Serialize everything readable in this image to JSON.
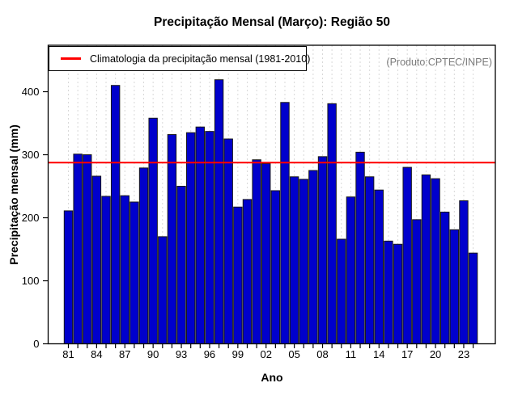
{
  "chart_data": {
    "type": "bar",
    "title": "Precipitação Mensal (Março): Região 50",
    "xlabel": "Ano",
    "ylabel": "Precipitação mensal (mm)",
    "watermark": "(Produto:CPTEC/INPE)",
    "legend_label": "Climatologia da precipitação mensal (1981-2010)",
    "legend_position": "top-left",
    "years": [
      1981,
      1982,
      1983,
      1984,
      1985,
      1986,
      1987,
      1988,
      1989,
      1990,
      1991,
      1992,
      1993,
      1994,
      1995,
      1996,
      1997,
      1998,
      1999,
      2000,
      2001,
      2002,
      2003,
      2004,
      2005,
      2006,
      2007,
      2008,
      2009,
      2010,
      2011,
      2012,
      2013,
      2014,
      2015,
      2016,
      2017,
      2018,
      2019,
      2020,
      2021,
      2022,
      2023,
      2024
    ],
    "values": [
      211,
      301,
      300,
      266,
      234,
      410,
      235,
      225,
      279,
      358,
      170,
      332,
      250,
      335,
      344,
      337,
      419,
      325,
      217,
      229,
      292,
      286,
      243,
      383,
      265,
      261,
      275,
      297,
      381,
      166,
      233,
      304,
      265,
      244,
      163,
      158,
      280,
      197,
      268,
      262,
      209,
      181,
      227,
      144
    ],
    "climatology_mm": 287.5,
    "ylim": [
      0,
      474
    ],
    "yticks": [
      0,
      100,
      200,
      300,
      400
    ],
    "xtick_labels": [
      "81",
      "84",
      "87",
      "90",
      "93",
      "96",
      "99",
      "02",
      "05",
      "08",
      "11",
      "14",
      "17",
      "20",
      "23"
    ],
    "xtick_step_years": 3,
    "grid": "vertical-dashed",
    "bar_color": "#0000cc",
    "bar_border": "#1a1a1a",
    "line_color": "#ff0000",
    "grid_color": "#d8d8d8",
    "axis_color": "#000000",
    "watermark_color": "#7b7b7b"
  }
}
